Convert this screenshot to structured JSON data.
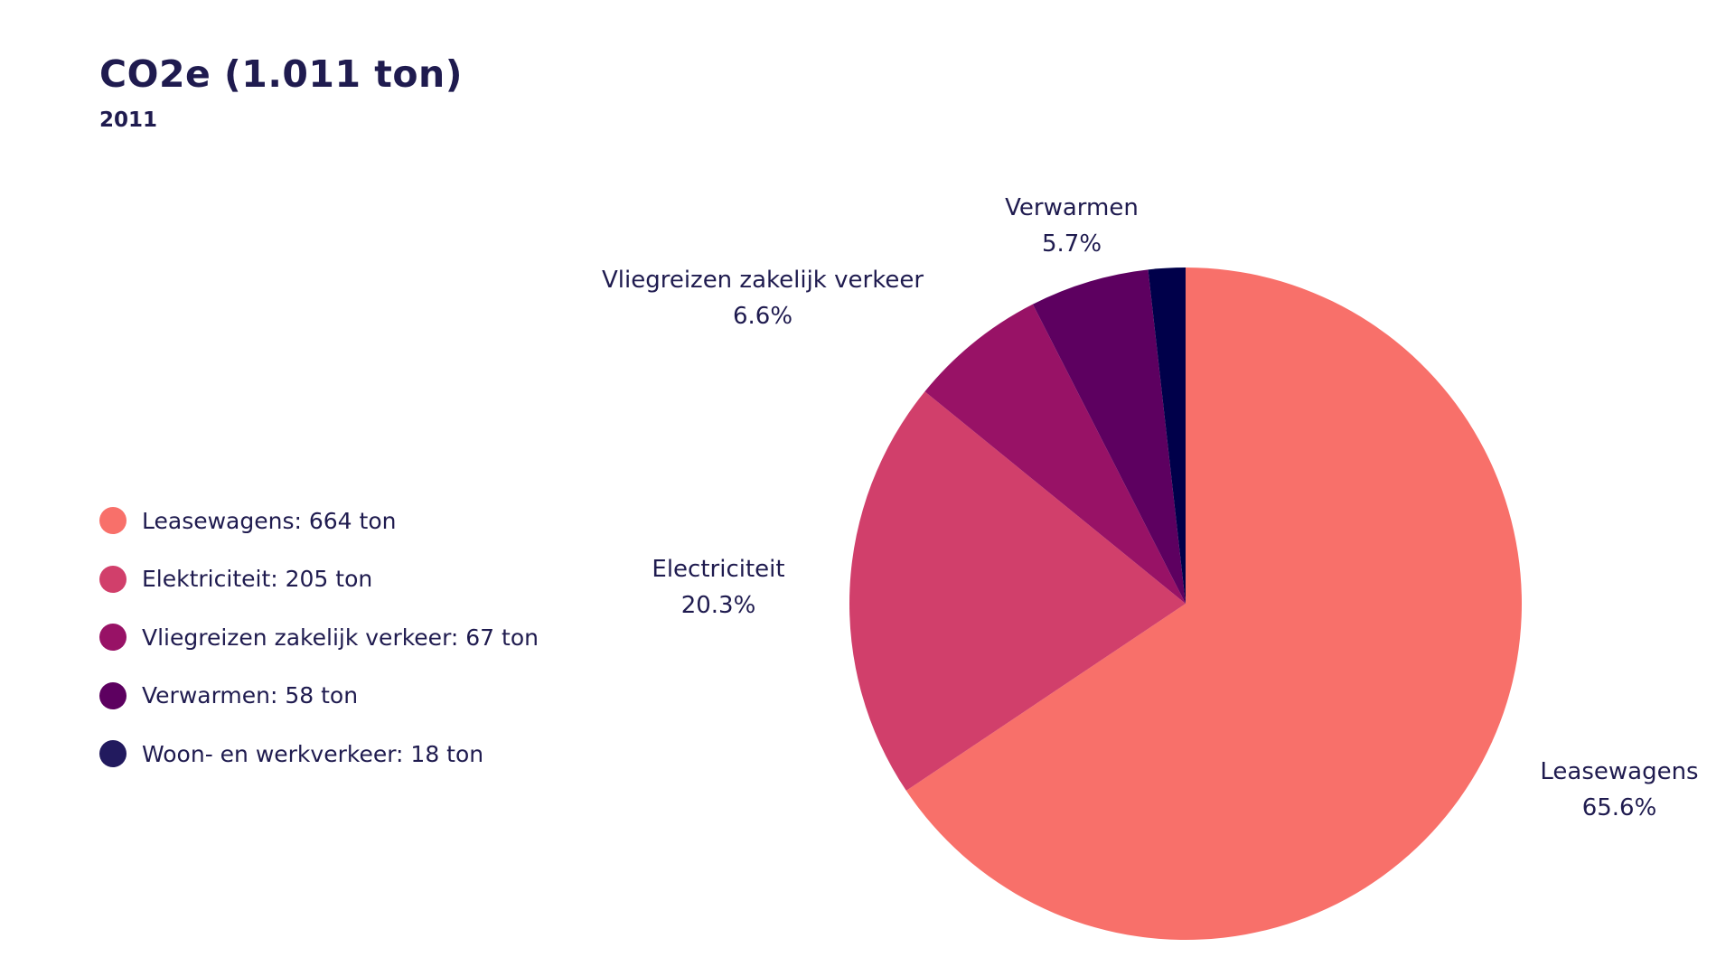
{
  "header": {
    "title": "CO2e (1.011 ton)",
    "subtitle": "2011"
  },
  "legend": {
    "items": [
      {
        "label": "Leasewagens: 664 ton",
        "color": "#f8706a"
      },
      {
        "label": "Elektriciteit: 205 ton",
        "color": "#d13f6b"
      },
      {
        "label": "Vliegreizen zakelijk verkeer: 67 ton",
        "color": "#981266"
      },
      {
        "label": "Verwarmen: 58 ton",
        "color": "#5d0060"
      },
      {
        "label": "Woon- en werkverkeer: 18 ton",
        "color": "#221a5e"
      }
    ]
  },
  "chart_data": {
    "type": "pie",
    "title": "CO2e (1.011 ton)",
    "subtitle": "2011",
    "legend_position": "left",
    "unit": "ton",
    "slices": [
      {
        "name": "Leasewagens",
        "value": 664,
        "percent_label": "65.6%",
        "color": "#f8706a"
      },
      {
        "name": "Electriciteit",
        "value": 205,
        "percent_label": "20.3%",
        "color": "#d13f6b"
      },
      {
        "name": "Vliegreizen zakelijk verkeer",
        "value": 67,
        "percent_label": "6.6%",
        "color": "#981266"
      },
      {
        "name": "Verwarmen",
        "value": 58,
        "percent_label": "5.7%",
        "color": "#5d0060"
      },
      {
        "name": "Woon- en werkverkeer",
        "value": 18,
        "percent_label": "",
        "color": "#00004a"
      }
    ]
  }
}
